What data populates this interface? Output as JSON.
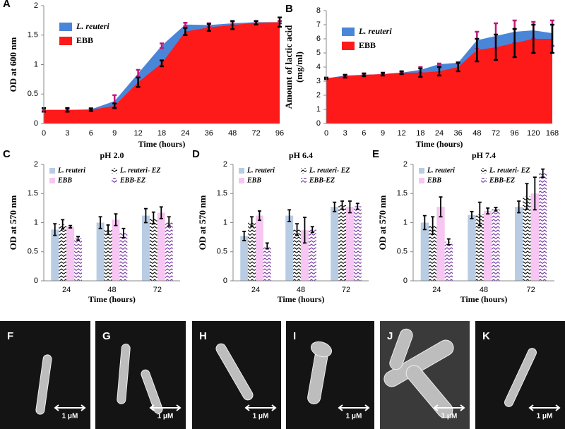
{
  "chart_data": [
    {
      "type": "area",
      "label": "A",
      "ylabel": [
        "OD at 600 nm"
      ],
      "xlabel": "Time (hours)",
      "categories": [
        "0",
        "3",
        "6",
        "9",
        "12",
        "18",
        "24",
        "36",
        "48",
        "72",
        "96"
      ],
      "ylim": [
        0,
        2
      ],
      "yticks": [
        0,
        0.5,
        1,
        1.5,
        2
      ],
      "series": [
        {
          "name": "L. reuteri",
          "color": "#4a86d8",
          "error_color": "#c0187a",
          "values": [
            0.23,
            0.23,
            0.24,
            0.38,
            0.85,
            1.32,
            1.68,
            1.67,
            1.7,
            1.72,
            1.72
          ],
          "errors": [
            0.02,
            0.02,
            0.02,
            0.1,
            0.06,
            0.04,
            0.03,
            0.03,
            0.03,
            0.02,
            0.02
          ]
        },
        {
          "name": "EBB",
          "color": "#ff1a1a",
          "error_color": "#000000",
          "values": [
            0.23,
            0.23,
            0.23,
            0.3,
            0.7,
            1.02,
            1.56,
            1.63,
            1.67,
            1.71,
            1.72
          ],
          "errors": [
            0.03,
            0.03,
            0.02,
            0.04,
            0.08,
            0.05,
            0.06,
            0.06,
            0.07,
            0.03,
            0.08
          ]
        }
      ]
    },
    {
      "type": "area",
      "label": "B",
      "ylabel": [
        "Amount of lactic acid",
        "(mg/ml)"
      ],
      "xlabel": "Time (hours)",
      "categories": [
        "0",
        "3",
        "6",
        "9",
        "12",
        "18",
        "24",
        "36",
        "48",
        "72",
        "96",
        "120",
        "168"
      ],
      "ylim": [
        0,
        8
      ],
      "yticks": [
        0,
        1,
        2,
        3,
        4,
        5,
        6,
        7,
        8
      ],
      "series": [
        {
          "name": "L. reuteri",
          "color": "#4a86d8",
          "error_color": "#c0187a",
          "values": [
            3.2,
            3.4,
            3.45,
            3.5,
            3.6,
            3.8,
            4.2,
            4.3,
            5.9,
            6.2,
            6.5,
            6.6,
            6.4
          ],
          "errors": [
            0.05,
            0.05,
            0.05,
            0.05,
            0.05,
            0.2,
            0.05,
            0.05,
            0.6,
            0.9,
            0.8,
            0.6,
            0.9
          ]
        },
        {
          "name": "EBB",
          "color": "#ff1a1a",
          "error_color": "#000000",
          "values": [
            3.2,
            3.35,
            3.45,
            3.5,
            3.6,
            3.6,
            3.7,
            4.0,
            5.2,
            5.4,
            5.7,
            6.0,
            6.0
          ],
          "errors": [
            0.05,
            0.1,
            0.1,
            0.1,
            0.1,
            0.3,
            0.3,
            0.3,
            0.8,
            0.9,
            1.0,
            1.0,
            1.0
          ]
        }
      ]
    },
    {
      "type": "bar",
      "label": "C",
      "title": "pH 2.0",
      "ylabel": [
        "OD at 570 nm"
      ],
      "xlabel": "Time (hours)",
      "categories": [
        "24",
        "48",
        "72"
      ],
      "ylim": [
        0,
        2
      ],
      "yticks": [
        0,
        0.5,
        1,
        1.5,
        2
      ],
      "series": [
        {
          "name": "L. reuteri",
          "color": "#b8cce4",
          "values": [
            0.88,
            1.0,
            1.12
          ],
          "errors": [
            0.1,
            0.1,
            0.12
          ]
        },
        {
          "name": "L. reuteri- EZ",
          "color": "#000000",
          "pattern": "zigzag",
          "values": [
            0.97,
            0.88,
            1.08
          ],
          "errors": [
            0.08,
            0.08,
            0.1
          ]
        },
        {
          "name": "EBB",
          "color": "#f7c6f2",
          "values": [
            0.93,
            1.05,
            1.17
          ],
          "errors": [
            0.02,
            0.1,
            0.1
          ]
        },
        {
          "name": "EBB-EZ",
          "color": "#7030a0",
          "pattern": "zigzag",
          "values": [
            0.73,
            0.82,
            1.02
          ],
          "errors": [
            0.03,
            0.08,
            0.08
          ]
        }
      ]
    },
    {
      "type": "bar",
      "label": "D",
      "title": "pH 6.4",
      "ylabel": [
        "OD at 570 nm"
      ],
      "xlabel": "Time (hours)",
      "categories": [
        "24",
        "48",
        "72"
      ],
      "ylim": [
        0,
        2
      ],
      "yticks": [
        0,
        0.5,
        1,
        1.5,
        2
      ],
      "series": [
        {
          "name": "L. reuteri",
          "color": "#b8cce4",
          "values": [
            0.77,
            1.12,
            1.27
          ],
          "errors": [
            0.08,
            0.1,
            0.08
          ]
        },
        {
          "name": "L. reuteri- EZ",
          "color": "#000000",
          "pattern": "zigzag",
          "values": [
            1.02,
            0.88,
            1.3
          ],
          "errors": [
            0.08,
            0.1,
            0.07
          ]
        },
        {
          "name": "EBB",
          "color": "#f7c6f2",
          "values": [
            1.12,
            0.87,
            1.27
          ],
          "errors": [
            0.08,
            0.22,
            0.1
          ]
        },
        {
          "name": "EBB-EZ",
          "color": "#7030a0",
          "pattern": "zigzag",
          "values": [
            0.6,
            0.88,
            1.28
          ],
          "errors": [
            0.05,
            0.05,
            0.05
          ]
        }
      ]
    },
    {
      "type": "bar",
      "label": "E",
      "title": "pH 7.4",
      "ylabel": [
        "OD at 570 nm"
      ],
      "xlabel": "Time (hours)",
      "categories": [
        "24",
        "48",
        "72"
      ],
      "ylim": [
        0,
        2
      ],
      "yticks": [
        0,
        0.5,
        1,
        1.5,
        2
      ],
      "series": [
        {
          "name": "L. reuteri",
          "color": "#b8cce4",
          "values": [
            1.0,
            1.13,
            1.27
          ],
          "errors": [
            0.12,
            0.06,
            0.1
          ]
        },
        {
          "name": "L. reuteri- EZ",
          "color": "#000000",
          "pattern": "zigzag",
          "values": [
            0.95,
            1.15,
            1.45
          ],
          "errors": [
            0.15,
            0.2,
            0.22
          ]
        },
        {
          "name": "EBB",
          "color": "#f7c6f2",
          "values": [
            1.27,
            1.2,
            1.5
          ],
          "errors": [
            0.17,
            0.05,
            0.28
          ]
        },
        {
          "name": "EBB-EZ",
          "color": "#7030a0",
          "pattern": "zigzag",
          "values": [
            0.67,
            1.23,
            1.85
          ],
          "errors": [
            0.05,
            0.03,
            0.07
          ]
        }
      ]
    }
  ],
  "images": [
    {
      "label": "F",
      "scale": "1 μM"
    },
    {
      "label": "G",
      "scale": "1 μM"
    },
    {
      "label": "H",
      "scale": "1 μM"
    },
    {
      "label": "I",
      "scale": "1 μM"
    },
    {
      "label": "J",
      "scale": "1 μM"
    },
    {
      "label": "K",
      "scale": "1 μM"
    }
  ]
}
